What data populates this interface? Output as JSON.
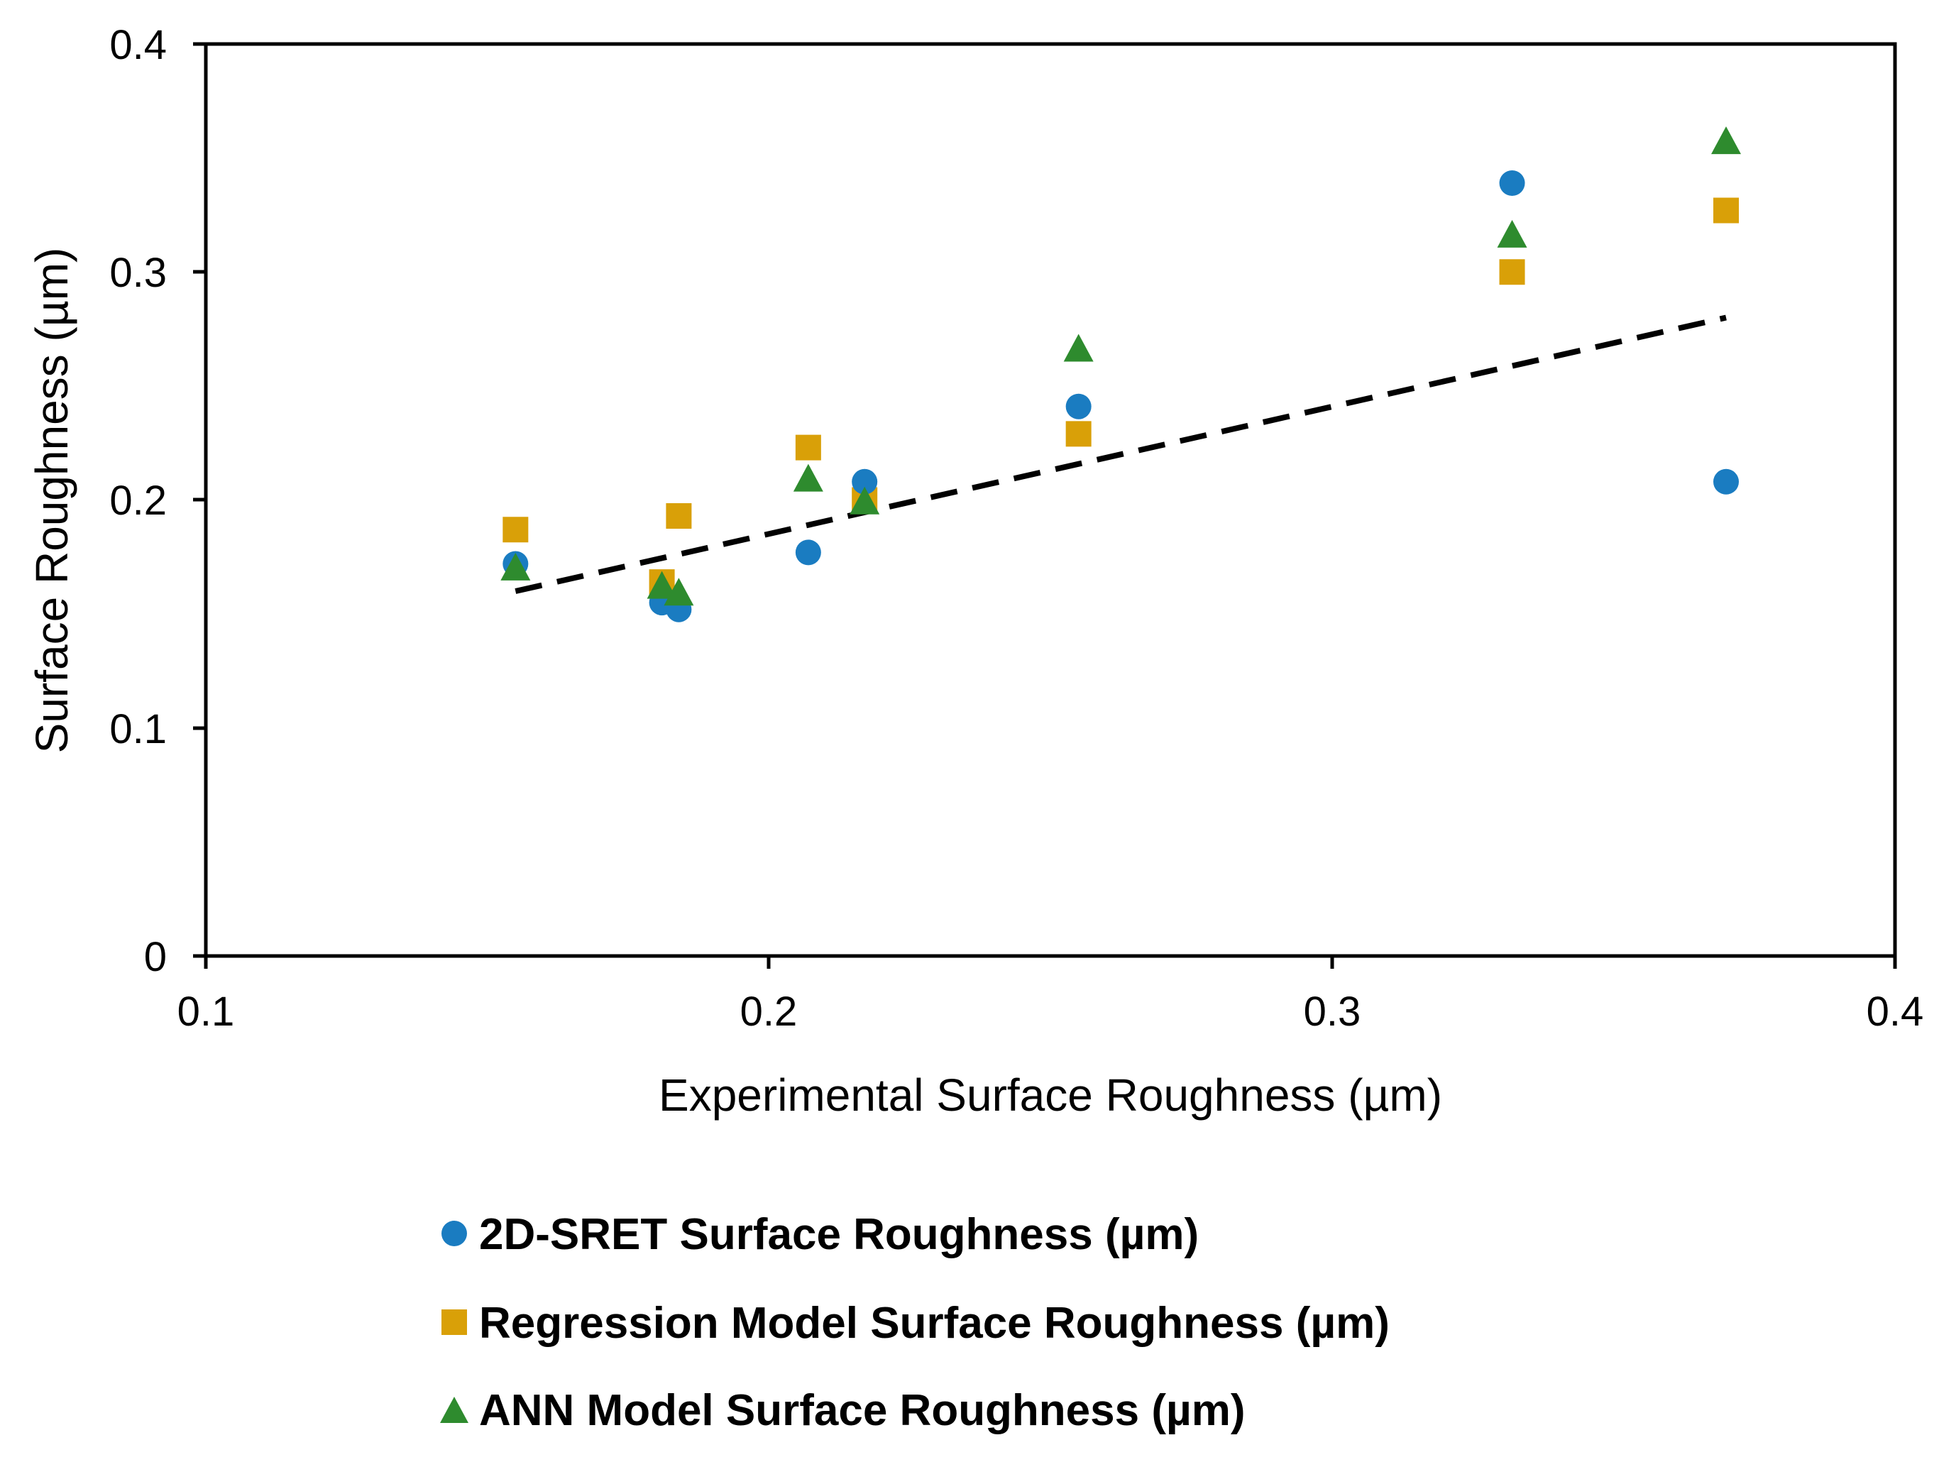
{
  "chart_data": {
    "type": "scatter",
    "title": "",
    "xlabel": "Experimental Surface Roughness (µm)",
    "ylabel": "Surface Roughness (µm)",
    "xlim": [
      0.1,
      0.4
    ],
    "ylim": [
      0,
      0.4
    ],
    "xticks": [
      "0.1",
      "0.2",
      "0.3",
      "0.4"
    ],
    "yticks": [
      "0",
      "0.1",
      "0.2",
      "0.3",
      "0.4"
    ],
    "grid": false,
    "legend_position": "bottom",
    "series": [
      {
        "name": "2D-SRET Surface Roughness (µm)",
        "marker": "circle",
        "color": "#1a7cc1",
        "points": [
          [
            0.155,
            0.172
          ],
          [
            0.181,
            0.155
          ],
          [
            0.184,
            0.152
          ],
          [
            0.207,
            0.177
          ],
          [
            0.217,
            0.208
          ],
          [
            0.255,
            0.241
          ],
          [
            0.332,
            0.339
          ],
          [
            0.37,
            0.208
          ]
        ]
      },
      {
        "name": "Regression Model Surface Roughness (µm)",
        "marker": "square",
        "color": "#d9a008",
        "points": [
          [
            0.155,
            0.187
          ],
          [
            0.181,
            0.164
          ],
          [
            0.184,
            0.193
          ],
          [
            0.207,
            0.223
          ],
          [
            0.217,
            0.2
          ],
          [
            0.255,
            0.229
          ],
          [
            0.332,
            0.3
          ],
          [
            0.37,
            0.327
          ]
        ]
      },
      {
        "name": "ANN Model Surface Roughness (µm)",
        "marker": "triangle",
        "color": "#2e8b2e",
        "points": [
          [
            0.155,
            0.17
          ],
          [
            0.181,
            0.162
          ],
          [
            0.184,
            0.159
          ],
          [
            0.207,
            0.209
          ],
          [
            0.217,
            0.199
          ],
          [
            0.255,
            0.266
          ],
          [
            0.332,
            0.316
          ],
          [
            0.37,
            0.357
          ]
        ]
      }
    ],
    "trendline": {
      "style": "dashed",
      "color": "#000000",
      "from": [
        0.155,
        0.16
      ],
      "to": [
        0.37,
        0.28
      ]
    }
  }
}
